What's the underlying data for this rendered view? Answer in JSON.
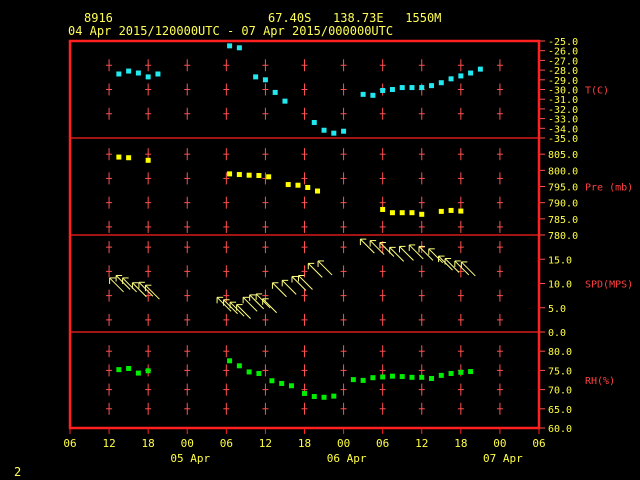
{
  "header": {
    "station": "8916",
    "location": "67.40S   138.73E   1550M",
    "period": "04 Apr 2015/120000UTC - 07 Apr 2015/000000UTC"
  },
  "footer": {
    "page_number": "2"
  },
  "colors": {
    "frame": "#ff2020",
    "grid": "#ff5050",
    "label": "#ffff44",
    "axis_text": "#ff4040",
    "temperature": "#22e8f0",
    "pressure": "#ffff00",
    "wind": "#ffff80",
    "humidity": "#00ee00"
  },
  "chart_data": {
    "type": "scatter",
    "x_axis": {
      "unit": "hours since 04 Apr 2015 06 UTC",
      "range": [
        0,
        72
      ],
      "ticks": [
        {
          "t": 0,
          "label": "06"
        },
        {
          "t": 6,
          "label": "12"
        },
        {
          "t": 12,
          "label": "18"
        },
        {
          "t": 18,
          "label": "00"
        },
        {
          "t": 24,
          "label": "06"
        },
        {
          "t": 30,
          "label": "12"
        },
        {
          "t": 36,
          "label": "18"
        },
        {
          "t": 42,
          "label": "00"
        },
        {
          "t": 48,
          "label": "06"
        },
        {
          "t": 54,
          "label": "12"
        },
        {
          "t": 60,
          "label": "18"
        },
        {
          "t": 66,
          "label": "00"
        },
        {
          "t": 72,
          "label": "06"
        }
      ],
      "date_labels": [
        {
          "t": 18,
          "label": "05 Apr"
        },
        {
          "t": 42,
          "label": "06 Apr"
        },
        {
          "t": 66,
          "label": "07 Apr"
        }
      ]
    },
    "panels": [
      {
        "name": "T(C)",
        "ylim": [
          -35.0,
          -25.0
        ],
        "tick_values": [
          -25,
          -26,
          -27,
          -28,
          -29,
          -30,
          -31,
          -32,
          -33,
          -34,
          -35
        ],
        "tick_labels": [
          "-25.0",
          "-26.0",
          "-27.0",
          "-28.0",
          "-29.0",
          "-30.0",
          "-31.0",
          "-32.0",
          "-33.0",
          "-34.0",
          "-35.0"
        ],
        "grid_ys": [
          -27.5,
          -30.0,
          -32.5
        ],
        "points": [
          [
            7.5,
            -28.4
          ],
          [
            9,
            -28.1
          ],
          [
            10.5,
            -28.3
          ],
          [
            12,
            -28.7
          ],
          [
            13.5,
            -28.4
          ],
          [
            24.5,
            -25.5
          ],
          [
            26,
            -25.7
          ],
          [
            28.5,
            -28.7
          ],
          [
            30,
            -29.0
          ],
          [
            31.5,
            -30.3
          ],
          [
            33,
            -31.2
          ],
          [
            37.5,
            -33.4
          ],
          [
            39,
            -34.2
          ],
          [
            40.5,
            -34.5
          ],
          [
            42,
            -34.3
          ],
          [
            45,
            -30.5
          ],
          [
            46.5,
            -30.6
          ],
          [
            48,
            -30.1
          ],
          [
            49.5,
            -30.0
          ],
          [
            51,
            -29.8
          ],
          [
            52.5,
            -29.8
          ],
          [
            54,
            -29.8
          ],
          [
            55.5,
            -29.6
          ],
          [
            57,
            -29.3
          ],
          [
            58.5,
            -28.9
          ],
          [
            60,
            -28.6
          ],
          [
            61.5,
            -28.3
          ],
          [
            63,
            -27.9
          ]
        ]
      },
      {
        "name": "Pre (mb)",
        "ylim": [
          780.0,
          810.0
        ],
        "tick_values": [
          805,
          800,
          795,
          790,
          785,
          780
        ],
        "tick_labels": [
          "805.0",
          "800.0",
          "795.0",
          "790.0",
          "785.0",
          "780.0"
        ],
        "grid_ys": [
          805,
          797.5,
          790,
          782.5
        ],
        "points": [
          [
            7.5,
            804.1
          ],
          [
            9,
            803.9
          ],
          [
            12,
            803.1
          ],
          [
            24.5,
            798.9
          ],
          [
            26,
            798.7
          ],
          [
            27.5,
            798.5
          ],
          [
            29,
            798.4
          ],
          [
            30.5,
            798.0
          ],
          [
            33.5,
            795.6
          ],
          [
            35,
            795.4
          ],
          [
            36.5,
            794.7
          ],
          [
            38,
            793.6
          ],
          [
            48,
            787.9
          ],
          [
            49.5,
            786.9
          ],
          [
            51,
            786.9
          ],
          [
            52.5,
            786.9
          ],
          [
            54,
            786.4
          ],
          [
            57,
            787.3
          ],
          [
            58.5,
            787.6
          ],
          [
            60,
            787.4
          ]
        ]
      },
      {
        "name": "SPD(MPS)",
        "ylim": [
          0.0,
          20.0
        ],
        "tick_values": [
          15,
          10,
          5,
          0
        ],
        "tick_labels": [
          "15.0",
          "10.0",
          "5.0",
          "0.0"
        ],
        "grid_ys": [
          17.5,
          12.5,
          7.5,
          2.5
        ],
        "points": [
          [
            7,
            9.5
          ],
          [
            8,
            10.0
          ],
          [
            9,
            9.5
          ],
          [
            10.5,
            8.5
          ],
          [
            11.5,
            8.6
          ],
          [
            12.5,
            8.0
          ],
          [
            23.5,
            5.5
          ],
          [
            24.5,
            5.0
          ],
          [
            25.5,
            4.5
          ],
          [
            26.5,
            4.0
          ],
          [
            27.5,
            5.5
          ],
          [
            28.5,
            6.0
          ],
          [
            29.5,
            6.2
          ],
          [
            30.5,
            5.2
          ],
          [
            32,
            8.5
          ],
          [
            33.5,
            9.0
          ],
          [
            35,
            9.8
          ],
          [
            36,
            10.0
          ],
          [
            37.5,
            12.5
          ],
          [
            39,
            13.0
          ],
          [
            45.5,
            17.5
          ],
          [
            47,
            17.2
          ],
          [
            48.5,
            16.8
          ],
          [
            50,
            15.8
          ],
          [
            51.5,
            16.0
          ],
          [
            53,
            16.3
          ],
          [
            54.5,
            16.0
          ],
          [
            56,
            15.5
          ],
          [
            57.5,
            14.0
          ],
          [
            58.5,
            13.5
          ],
          [
            60,
            13.0
          ],
          [
            61,
            12.8
          ]
        ]
      },
      {
        "name": "RH(%)",
        "ylim": [
          60.0,
          85.0
        ],
        "tick_values": [
          80,
          75,
          70,
          65,
          60
        ],
        "tick_labels": [
          "80.0",
          "75.0",
          "70.0",
          "65.0",
          "60.0"
        ],
        "grid_ys": [
          80,
          75,
          70,
          65
        ],
        "points": [
          [
            7.5,
            75.2
          ],
          [
            9,
            75.5
          ],
          [
            10.5,
            74.3
          ],
          [
            12,
            74.9
          ],
          [
            24.5,
            77.5
          ],
          [
            26,
            76.2
          ],
          [
            27.5,
            74.6
          ],
          [
            29,
            74.2
          ],
          [
            31,
            72.3
          ],
          [
            32.5,
            71.6
          ],
          [
            34,
            71.0
          ],
          [
            36,
            69.0
          ],
          [
            37.5,
            68.2
          ],
          [
            39,
            68.0
          ],
          [
            40.5,
            68.3
          ],
          [
            43.5,
            72.6
          ],
          [
            45,
            72.4
          ],
          [
            46.5,
            73.1
          ],
          [
            48,
            73.3
          ],
          [
            49.5,
            73.5
          ],
          [
            51,
            73.4
          ],
          [
            52.5,
            73.2
          ],
          [
            54,
            73.2
          ],
          [
            55.5,
            72.9
          ],
          [
            57,
            73.7
          ],
          [
            58.5,
            74.2
          ],
          [
            60,
            74.5
          ],
          [
            61.5,
            74.7
          ]
        ]
      }
    ]
  }
}
